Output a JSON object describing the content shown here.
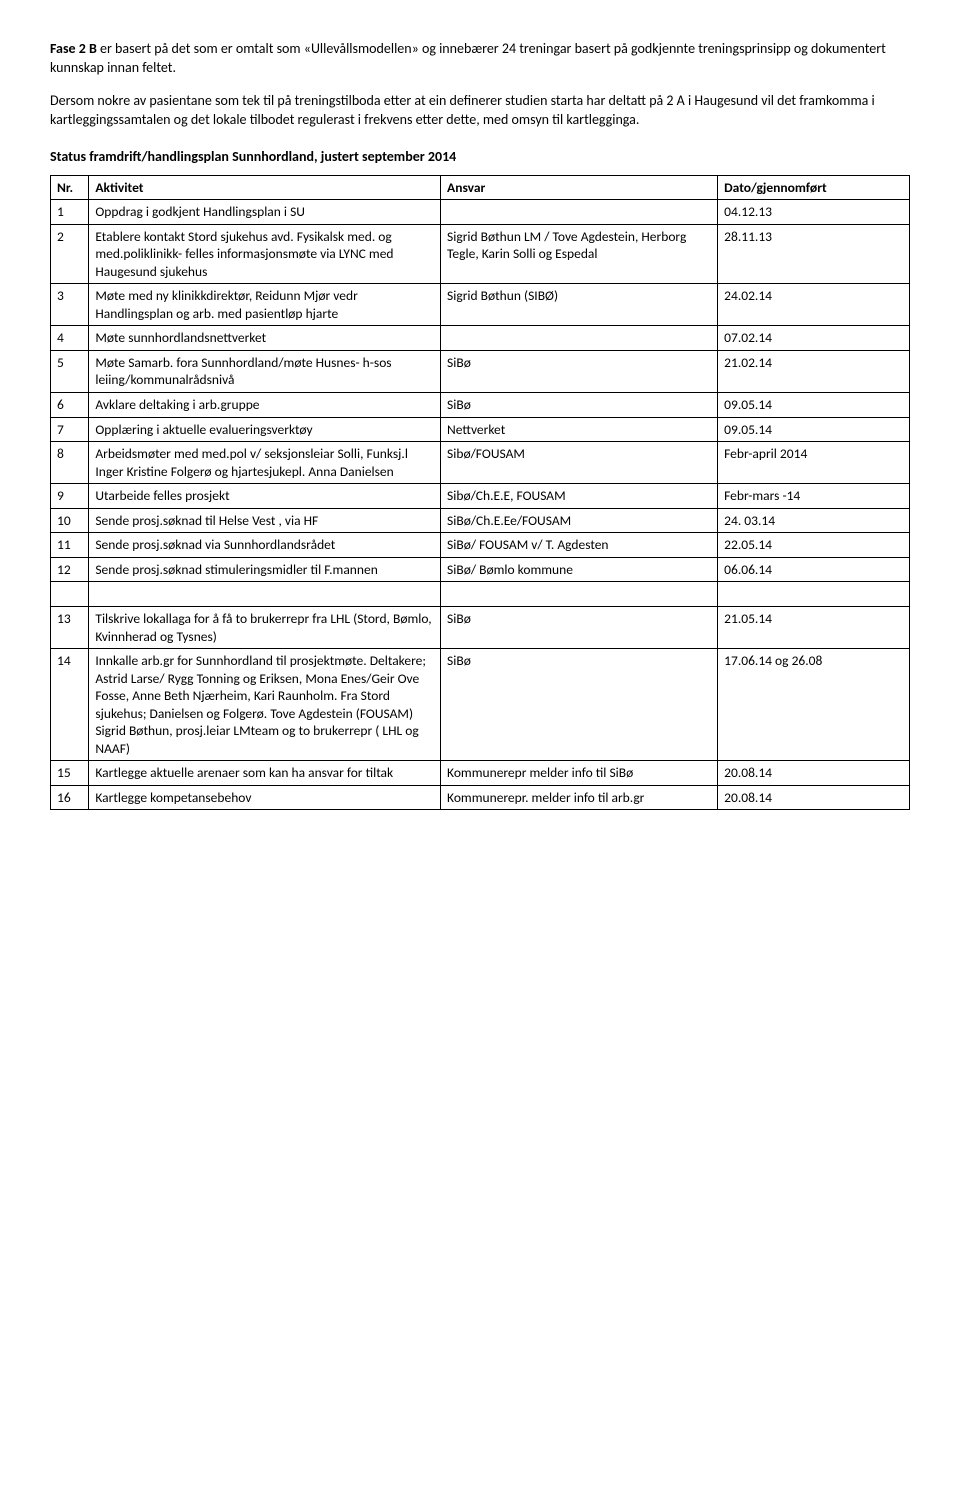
{
  "intro": {
    "p1_prefix": "Fase 2 B",
    "p1_rest": " er basert på det som er omtalt som «Ullevållsmodellen» og innebærer 24 treningar basert på godkjennte treningsprinsipp og dokumentert kunnskap innan feltet.",
    "p2": "Dersom nokre av pasientane som tek til på treningstilboda etter at ein definerer studien starta har deltatt på 2 A i Haugesund vil det framkomma i kartleggingssamtalen og det lokale tilbodet regulerast i frekvens etter dette, med omsyn til kartlegginga."
  },
  "heading": "Status framdrift/handlingsplan Sunnhordland, justert september 2014",
  "table": {
    "headers": {
      "nr": "Nr.",
      "aktivitet": "Aktivitet",
      "ansvar": "Ansvar",
      "dato": "Dato/gjennomført"
    },
    "rows": [
      {
        "nr": "1",
        "aktivitet": "Oppdrag i godkjent Handlingsplan i SU",
        "ansvar": "",
        "dato": "04.12.13"
      },
      {
        "nr": "2",
        "aktivitet": "Etablere kontakt Stord sjukehus avd. Fysikalsk med. og med.poliklinikk- felles informasjonsmøte via LYNC med Haugesund sjukehus",
        "ansvar": "Sigrid Bøthun LM / Tove Agdestein, Herborg Tegle, Karin Solli og Espedal",
        "dato": "28.11.13"
      },
      {
        "nr": "3",
        "aktivitet": "Møte med ny klinikkdirektør, Reidunn Mjør vedr Handlingsplan og arb. med pasientløp hjarte",
        "ansvar": "Sigrid Bøthun (SIBØ)",
        "dato": "24.02.14"
      },
      {
        "nr": "4",
        "aktivitet": "Møte sunnhordlandsnettverket",
        "ansvar": "",
        "dato": "07.02.14"
      },
      {
        "nr": "5",
        "aktivitet": "Møte Samarb. fora Sunnhordland/møte Husnes- h-sos leiing/kommunalrådsnivå",
        "ansvar": "SiBø",
        "dato": "21.02.14"
      },
      {
        "nr": "6",
        "aktivitet": "Avklare deltaking i arb.gruppe",
        "ansvar": "SiBø",
        "dato": "09.05.14"
      },
      {
        "nr": "7",
        "aktivitet": "Opplæring i aktuelle evalueringsverktøy",
        "ansvar": "Nettverket",
        "dato": "09.05.14"
      },
      {
        "nr": "8",
        "aktivitet": "Arbeidsmøter med med.pol v/ seksjonsleiar Solli, Funksj.l Inger Kristine Folgerø og hjartesjukepl. Anna Danielsen",
        "ansvar": "Sibø/FOUSAM",
        "dato": "Febr-april 2014"
      },
      {
        "nr": "9",
        "aktivitet": "Utarbeide felles prosjekt",
        "ansvar": "Sibø/Ch.E.E, FOUSAM",
        "dato": "Febr-mars -14"
      },
      {
        "nr": "10",
        "aktivitet": "Sende prosj.søknad til Helse Vest , via HF",
        "ansvar": "SiBø/Ch.E.Ee/FOUSAM",
        "dato": "24. 03.14"
      },
      {
        "nr": "11",
        "aktivitet": "Sende prosj.søknad via Sunnhordlandsrådet",
        "ansvar": "SiBø/ FOUSAM v/ T. Agdesten",
        "dato": "22.05.14"
      },
      {
        "nr": "12",
        "aktivitet": "Sende prosj.søknad stimuleringsmidler til F.mannen",
        "ansvar": "SiBø/ Bømlo kommune",
        "dato": "06.06.14"
      },
      {
        "nr": "__GAP__",
        "aktivitet": "",
        "ansvar": "",
        "dato": ""
      },
      {
        "nr": "13",
        "aktivitet": "Tilskrive lokallaga for å få to brukerrepr fra LHL (Stord, Bømlo, Kvinnherad og Tysnes)",
        "ansvar": "SiBø",
        "dato": "21.05.14"
      },
      {
        "nr": "14",
        "aktivitet": "Innkalle arb.gr for Sunnhordland til prosjektmøte. Deltakere; Astrid Larse/ Rygg Tonning og Eriksen, Mona Enes/Geir Ove Fosse, Anne Beth Njærheim, Kari Raunholm. Fra Stord sjukehus; Danielsen og Folgerø. Tove Agdestein (FOUSAM) Sigrid Bøthun, prosj.leiar LMteam og to brukerrepr ( LHL og NAAF)",
        "ansvar": "SiBø",
        "dato": "17.06.14 og 26.08"
      },
      {
        "nr": "15",
        "aktivitet": "Kartlegge aktuelle arenaer som kan ha ansvar for tiltak",
        "ansvar": "Kommunerepr melder info til SiBø",
        "dato": "20.08.14"
      },
      {
        "nr": "16",
        "aktivitet": "Kartlegge kompetansebehov",
        "ansvar": "Kommunerepr. melder info til arb.gr",
        "dato": "20.08.14"
      }
    ]
  }
}
